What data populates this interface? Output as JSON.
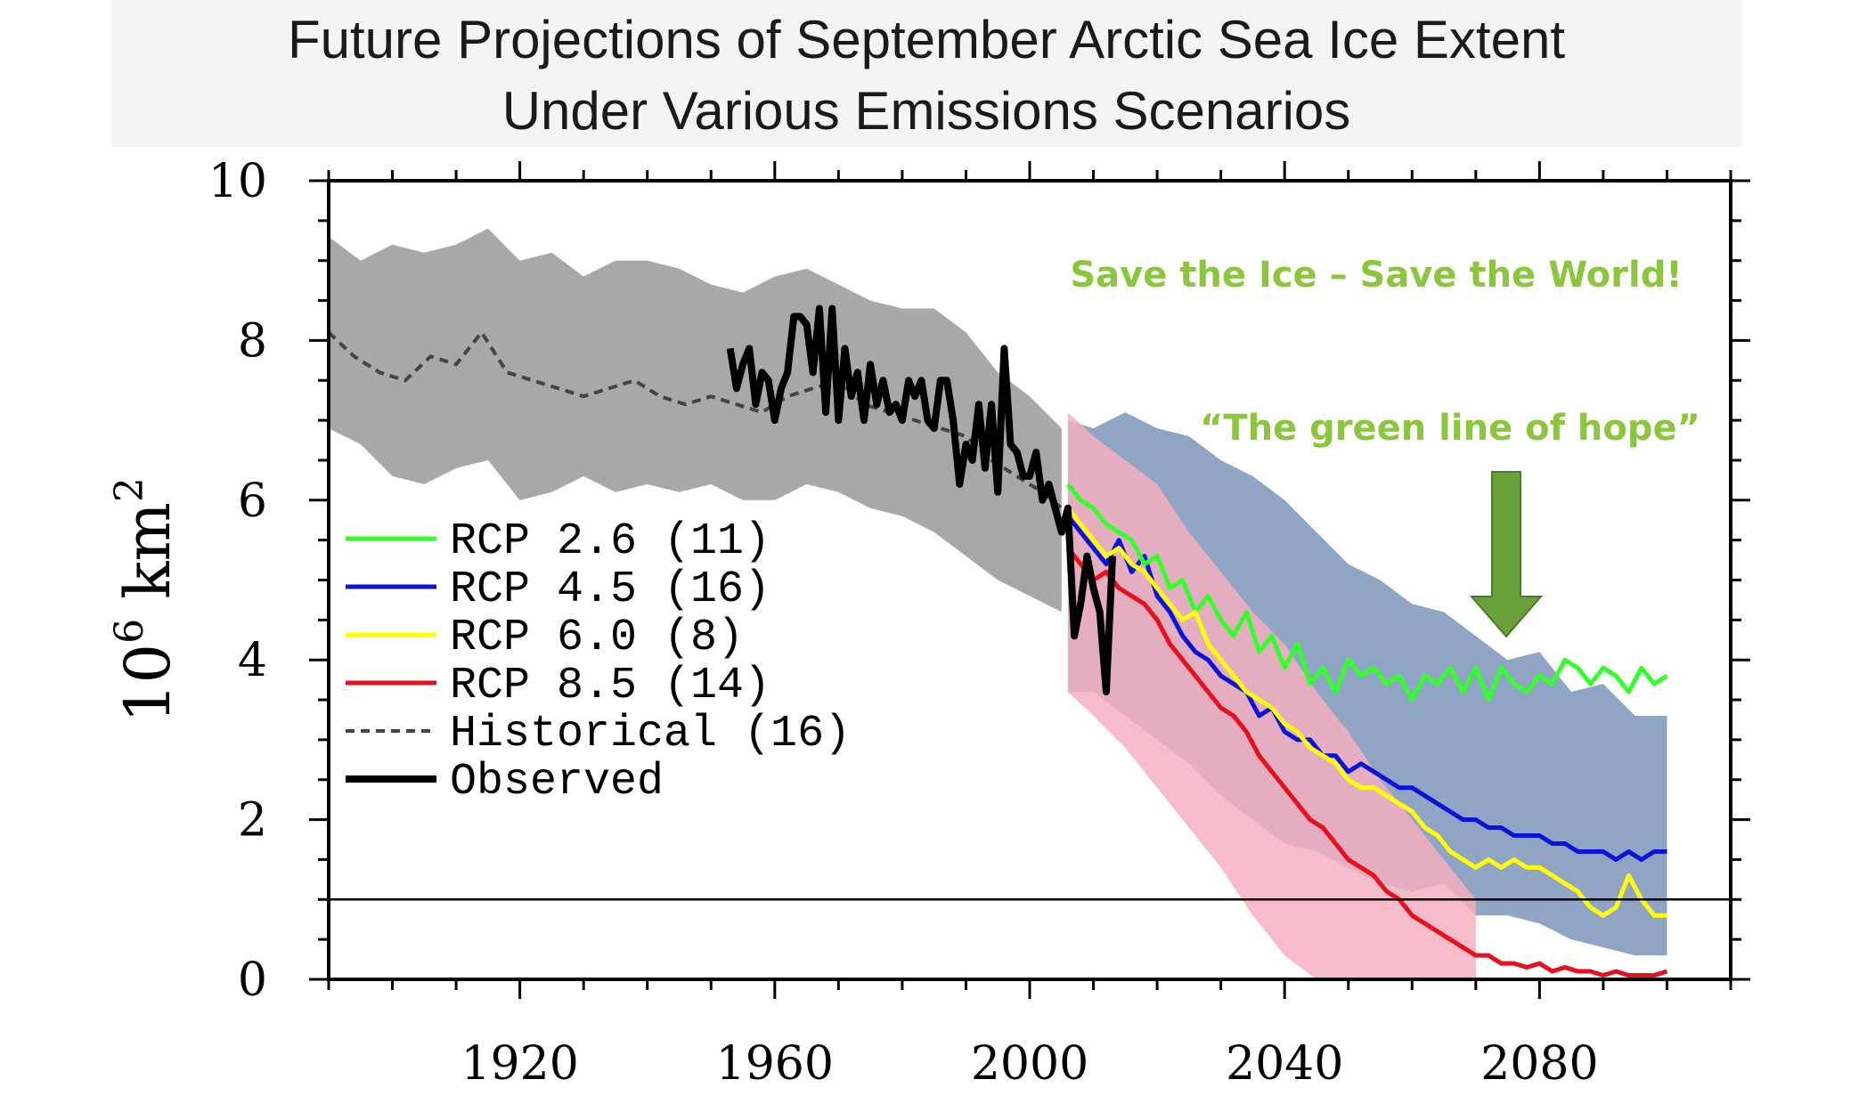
{
  "title": {
    "line1": "Future Projections of September Arctic Sea Ice Extent",
    "line2": "Under Various Emissions Scenarios"
  },
  "colors": {
    "rcp26": "#33ff2a",
    "rcp45": "#0a14d8",
    "rcp60": "#ffff00",
    "rcp85": "#e8101c",
    "historical": "#444444",
    "observed": "#000000",
    "hist_band": "#a8a8a8",
    "rcp45_band": "#90a4c4",
    "rcp85_band": "#f5b0c0",
    "annotation": "#8cc63f",
    "arrow": "#6aa03a"
  },
  "annotations": {
    "slogan": "Save the Ice – Save the World!",
    "hope": "“The green line of hope”"
  },
  "chart_data": {
    "type": "line",
    "title": "Future Projections of September Arctic Sea Ice Extent Under Various Emissions Scenarios",
    "xlabel": "",
    "ylabel": "10⁶ km²",
    "ylabel_main": "10",
    "ylabel_sup1": "6",
    "ylabel_unit": "km",
    "ylabel_sup2": "2",
    "xlim": [
      1890,
      2110
    ],
    "ylim": [
      0,
      10
    ],
    "x_ticks": [
      1920,
      1960,
      2000,
      2040,
      2080
    ],
    "y_ticks": [
      0,
      2,
      4,
      6,
      8,
      10
    ],
    "reference_line_y": 1,
    "legend_position": "center-left",
    "series": [
      {
        "name": "RCP 2.6 (11)",
        "key": "rcp26",
        "style": "solid",
        "x": [
          2006,
          2008,
          2010,
          2012,
          2014,
          2016,
          2018,
          2020,
          2022,
          2024,
          2026,
          2028,
          2030,
          2032,
          2034,
          2036,
          2038,
          2040,
          2042,
          2044,
          2046,
          2048,
          2050,
          2052,
          2054,
          2056,
          2058,
          2060,
          2062,
          2064,
          2066,
          2068,
          2070,
          2072,
          2074,
          2076,
          2078,
          2080,
          2082,
          2084,
          2086,
          2088,
          2090,
          2092,
          2094,
          2096,
          2098,
          2100
        ],
        "y": [
          6.2,
          6.0,
          5.9,
          5.7,
          5.6,
          5.5,
          5.2,
          5.3,
          4.9,
          5.0,
          4.6,
          4.8,
          4.5,
          4.3,
          4.6,
          4.1,
          4.3,
          3.9,
          4.2,
          3.7,
          3.9,
          3.6,
          4.0,
          3.8,
          3.9,
          3.7,
          3.8,
          3.5,
          3.8,
          3.7,
          3.9,
          3.6,
          3.9,
          3.5,
          3.9,
          3.7,
          3.6,
          3.8,
          3.7,
          4.0,
          3.9,
          3.7,
          3.9,
          3.8,
          3.6,
          3.9,
          3.7,
          3.8
        ]
      },
      {
        "name": "RCP 4.5 (16)",
        "key": "rcp45",
        "style": "solid",
        "x": [
          2006,
          2008,
          2010,
          2012,
          2014,
          2016,
          2018,
          2020,
          2022,
          2024,
          2026,
          2028,
          2030,
          2032,
          2034,
          2036,
          2038,
          2040,
          2042,
          2044,
          2046,
          2048,
          2050,
          2052,
          2054,
          2056,
          2058,
          2060,
          2062,
          2064,
          2066,
          2068,
          2070,
          2072,
          2074,
          2076,
          2078,
          2080,
          2082,
          2084,
          2086,
          2088,
          2090,
          2092,
          2094,
          2096,
          2098,
          2100
        ],
        "y": [
          5.8,
          5.6,
          5.4,
          5.2,
          5.5,
          5.1,
          5.3,
          4.8,
          4.6,
          4.3,
          4.1,
          4.0,
          3.8,
          3.7,
          3.6,
          3.3,
          3.4,
          3.1,
          3.0,
          3.0,
          2.8,
          2.8,
          2.6,
          2.7,
          2.6,
          2.5,
          2.4,
          2.4,
          2.3,
          2.2,
          2.1,
          2.0,
          2.0,
          1.9,
          1.9,
          1.8,
          1.8,
          1.8,
          1.7,
          1.7,
          1.6,
          1.6,
          1.6,
          1.5,
          1.6,
          1.5,
          1.6,
          1.6
        ]
      },
      {
        "name": "RCP 6.0 (8)",
        "key": "rcp60",
        "style": "solid",
        "x": [
          2006,
          2008,
          2010,
          2012,
          2014,
          2016,
          2018,
          2020,
          2022,
          2024,
          2026,
          2028,
          2030,
          2032,
          2034,
          2036,
          2038,
          2040,
          2042,
          2044,
          2046,
          2048,
          2050,
          2052,
          2054,
          2056,
          2058,
          2060,
          2062,
          2064,
          2066,
          2068,
          2070,
          2072,
          2074,
          2076,
          2078,
          2080,
          2082,
          2084,
          2086,
          2088,
          2090,
          2092,
          2094,
          2096,
          2098,
          2100
        ],
        "y": [
          5.9,
          5.7,
          5.5,
          5.3,
          5.4,
          5.2,
          5.1,
          4.9,
          4.7,
          4.5,
          4.6,
          4.2,
          4.0,
          3.8,
          3.6,
          3.5,
          3.4,
          3.2,
          3.1,
          2.9,
          2.8,
          2.7,
          2.5,
          2.4,
          2.4,
          2.3,
          2.2,
          2.1,
          1.9,
          1.8,
          1.6,
          1.5,
          1.4,
          1.5,
          1.4,
          1.5,
          1.4,
          1.4,
          1.3,
          1.2,
          1.1,
          0.9,
          0.8,
          0.9,
          1.3,
          1.0,
          0.8,
          0.8
        ]
      },
      {
        "name": "RCP 8.5 (14)",
        "key": "rcp85",
        "style": "solid",
        "x": [
          2006,
          2008,
          2010,
          2012,
          2014,
          2016,
          2018,
          2020,
          2022,
          2024,
          2026,
          2028,
          2030,
          2032,
          2034,
          2036,
          2038,
          2040,
          2042,
          2044,
          2046,
          2048,
          2050,
          2052,
          2054,
          2056,
          2058,
          2060,
          2062,
          2064,
          2066,
          2068,
          2070,
          2072,
          2074,
          2076,
          2078,
          2080,
          2082,
          2084,
          2086,
          2088,
          2090,
          2092,
          2094,
          2096,
          2098,
          2100
        ],
        "y": [
          5.4,
          5.2,
          5.0,
          5.1,
          4.9,
          4.8,
          4.7,
          4.5,
          4.2,
          4.0,
          3.8,
          3.6,
          3.4,
          3.3,
          3.1,
          2.8,
          2.6,
          2.4,
          2.2,
          2.0,
          1.9,
          1.7,
          1.5,
          1.4,
          1.3,
          1.1,
          1.0,
          0.8,
          0.7,
          0.6,
          0.5,
          0.4,
          0.3,
          0.3,
          0.2,
          0.2,
          0.15,
          0.2,
          0.1,
          0.15,
          0.1,
          0.1,
          0.05,
          0.1,
          0.05,
          0.05,
          0.05,
          0.1
        ]
      },
      {
        "name": "Historical (16)",
        "key": "historical",
        "style": "dashed",
        "x": [
          1890,
          1894,
          1898,
          1902,
          1906,
          1910,
          1914,
          1918,
          1922,
          1926,
          1930,
          1934,
          1938,
          1942,
          1946,
          1950,
          1954,
          1958,
          1962,
          1966,
          1970,
          1974,
          1978,
          1982,
          1986,
          1990,
          1994,
          1998,
          2002,
          2005
        ],
        "y": [
          8.1,
          7.8,
          7.6,
          7.5,
          7.8,
          7.7,
          8.1,
          7.6,
          7.5,
          7.4,
          7.3,
          7.4,
          7.5,
          7.3,
          7.2,
          7.3,
          7.2,
          7.1,
          7.3,
          7.4,
          7.5,
          7.2,
          7.1,
          7.0,
          6.9,
          6.8,
          6.5,
          6.3,
          6.1,
          5.9
        ]
      },
      {
        "name": "Observed",
        "key": "observed",
        "style": "thick",
        "x": [
          1953,
          1954,
          1955,
          1956,
          1957,
          1958,
          1959,
          1960,
          1961,
          1962,
          1963,
          1964,
          1965,
          1966,
          1967,
          1968,
          1969,
          1970,
          1971,
          1972,
          1973,
          1974,
          1975,
          1976,
          1977,
          1978,
          1979,
          1980,
          1981,
          1982,
          1983,
          1984,
          1985,
          1986,
          1987,
          1988,
          1989,
          1990,
          1991,
          1992,
          1993,
          1994,
          1995,
          1996,
          1997,
          1998,
          1999,
          2000,
          2001,
          2002,
          2003,
          2004,
          2005,
          2006,
          2007,
          2008,
          2009,
          2010,
          2011,
          2012,
          2013
        ],
        "y": [
          7.9,
          7.4,
          7.7,
          7.9,
          7.2,
          7.6,
          7.5,
          7.0,
          7.4,
          7.6,
          8.3,
          8.3,
          8.2,
          7.6,
          8.4,
          7.1,
          8.4,
          7.0,
          7.9,
          7.3,
          7.6,
          7.0,
          7.7,
          7.2,
          7.5,
          7.1,
          7.2,
          7.0,
          7.5,
          7.3,
          7.5,
          7.0,
          6.9,
          7.5,
          7.5,
          7.0,
          6.2,
          6.7,
          6.5,
          7.2,
          6.4,
          7.2,
          6.1,
          7.9,
          6.7,
          6.6,
          6.3,
          6.3,
          6.6,
          6.0,
          6.2,
          5.9,
          5.6,
          5.9,
          4.3,
          4.7,
          5.3,
          4.9,
          4.6,
          3.6,
          5.3
        ]
      }
    ],
    "bands": [
      {
        "key": "historical_spread",
        "x": [
          1890,
          1895,
          1900,
          1905,
          1910,
          1915,
          1920,
          1925,
          1930,
          1935,
          1940,
          1945,
          1950,
          1955,
          1960,
          1965,
          1970,
          1975,
          1980,
          1985,
          1990,
          1995,
          2000,
          2005
        ],
        "upper": [
          9.3,
          9.0,
          9.2,
          9.1,
          9.2,
          9.4,
          9.0,
          9.1,
          8.8,
          9.0,
          9.0,
          8.9,
          8.7,
          8.6,
          8.8,
          8.9,
          8.7,
          8.5,
          8.4,
          8.4,
          8.1,
          7.6,
          7.3,
          6.9
        ],
        "lower": [
          6.9,
          6.7,
          6.3,
          6.2,
          6.4,
          6.5,
          6.0,
          6.1,
          6.3,
          6.1,
          6.2,
          6.1,
          6.2,
          6.0,
          6.0,
          6.2,
          6.1,
          5.9,
          5.8,
          5.6,
          5.3,
          5.0,
          4.8,
          4.6
        ]
      },
      {
        "key": "rcp45_spread",
        "x": [
          2006,
          2010,
          2015,
          2020,
          2025,
          2030,
          2035,
          2040,
          2045,
          2050,
          2055,
          2060,
          2065,
          2070,
          2075,
          2080,
          2085,
          2090,
          2095,
          2100
        ],
        "upper": [
          7.0,
          6.9,
          7.1,
          6.9,
          6.8,
          6.5,
          6.3,
          6.0,
          5.6,
          5.2,
          5.0,
          4.7,
          4.6,
          4.3,
          4.0,
          4.1,
          3.6,
          3.7,
          3.3,
          3.3
        ],
        "lower": [
          3.6,
          3.6,
          3.3,
          3.0,
          2.7,
          2.3,
          2.0,
          1.7,
          1.6,
          1.4,
          1.2,
          1.1,
          1.2,
          0.8,
          0.8,
          0.7,
          0.5,
          0.4,
          0.3,
          0.3
        ]
      },
      {
        "key": "rcp85_spread",
        "x": [
          2006,
          2010,
          2015,
          2020,
          2025,
          2030,
          2035,
          2040,
          2045,
          2050,
          2055,
          2060,
          2065,
          2070
        ],
        "upper": [
          7.1,
          6.8,
          6.5,
          6.2,
          5.6,
          5.1,
          4.6,
          4.2,
          3.6,
          3.1,
          2.5,
          2.0,
          1.5,
          1.0
        ],
        "lower": [
          3.6,
          3.3,
          2.9,
          2.4,
          1.9,
          1.4,
          0.8,
          0.3,
          0.0,
          0.0,
          0.0,
          0.0,
          0.0,
          0.0
        ]
      }
    ]
  }
}
